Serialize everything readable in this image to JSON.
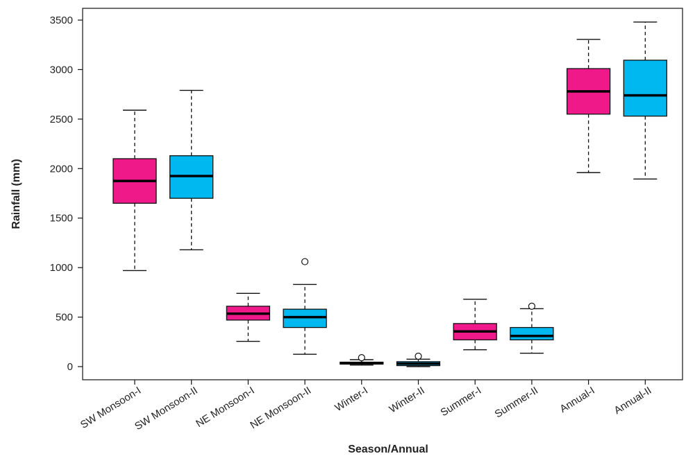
{
  "chart_data": {
    "type": "boxplot",
    "title": "",
    "xlabel": "Season/Annual",
    "ylabel": "Rainfall (mm)",
    "ylim": [
      -100,
      3600
    ],
    "yticks": [
      0,
      500,
      1000,
      1500,
      2000,
      2500,
      3000,
      3500
    ],
    "ytick_labels": [
      "0",
      "500",
      "1000",
      "1500",
      "2000",
      "2500",
      "3000",
      "3500"
    ],
    "grid": false,
    "colors": {
      "I": "#F0198A",
      "II": "#00B8F0"
    },
    "categories": [
      "SW Monsoon-I",
      "SW Monsoon-II",
      "NE Monsoon-I",
      "NE Monsoon-II",
      "Winter-I",
      "Winter-II",
      "Summer-I",
      "Summer-II",
      "Annual-I",
      "Annual-II"
    ],
    "boxes": [
      {
        "label": "SW Monsoon-I",
        "group": "I",
        "whisker_low": 970,
        "q1": 1650,
        "median": 1875,
        "q3": 2100,
        "whisker_high": 2590,
        "outliers": []
      },
      {
        "label": "SW Monsoon-II",
        "group": "II",
        "whisker_low": 1180,
        "q1": 1700,
        "median": 1925,
        "q3": 2130,
        "whisker_high": 2790,
        "outliers": []
      },
      {
        "label": "NE Monsoon-I",
        "group": "I",
        "whisker_low": 255,
        "q1": 470,
        "median": 535,
        "q3": 610,
        "whisker_high": 740,
        "outliers": []
      },
      {
        "label": "NE Monsoon-II",
        "group": "II",
        "whisker_low": 125,
        "q1": 395,
        "median": 500,
        "q3": 580,
        "whisker_high": 830,
        "outliers": [
          1060
        ]
      },
      {
        "label": "Winter-I",
        "group": "I",
        "whisker_low": 15,
        "q1": 25,
        "median": 35,
        "q3": 45,
        "whisker_high": 70,
        "outliers": [
          90
        ]
      },
      {
        "label": "Winter-II",
        "group": "II",
        "whisker_low": 0,
        "q1": 10,
        "median": 30,
        "q3": 50,
        "whisker_high": 75,
        "outliers": [
          105
        ]
      },
      {
        "label": "Summer-I",
        "group": "I",
        "whisker_low": 170,
        "q1": 270,
        "median": 355,
        "q3": 435,
        "whisker_high": 680,
        "outliers": []
      },
      {
        "label": "Summer-II",
        "group": "II",
        "whisker_low": 135,
        "q1": 270,
        "median": 310,
        "q3": 395,
        "whisker_high": 585,
        "outliers": [
          610
        ]
      },
      {
        "label": "Annual-I",
        "group": "I",
        "whisker_low": 1960,
        "q1": 2550,
        "median": 2780,
        "q3": 3010,
        "whisker_high": 3305,
        "outliers": []
      },
      {
        "label": "Annual-II",
        "group": "II",
        "whisker_low": 1895,
        "q1": 2530,
        "median": 2740,
        "q3": 3095,
        "whisker_high": 3480,
        "outliers": []
      }
    ]
  }
}
